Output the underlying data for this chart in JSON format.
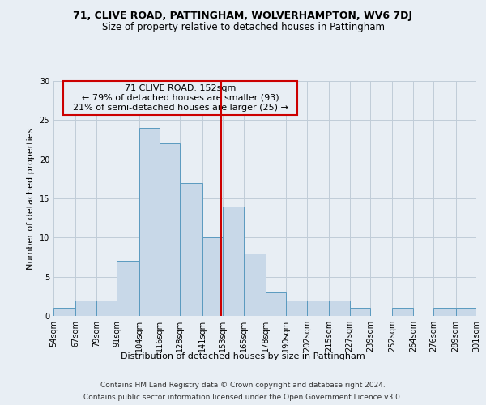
{
  "title1": "71, CLIVE ROAD, PATTINGHAM, WOLVERHAMPTON, WV6 7DJ",
  "title2": "Size of property relative to detached houses in Pattingham",
  "xlabel": "Distribution of detached houses by size in Pattingham",
  "ylabel": "Number of detached properties",
  "footer1": "Contains HM Land Registry data © Crown copyright and database right 2024.",
  "footer2": "Contains public sector information licensed under the Open Government Licence v3.0.",
  "annotation_line1": "71 CLIVE ROAD: 152sqm",
  "annotation_line2": "← 79% of detached houses are smaller (93)",
  "annotation_line3": "21% of semi-detached houses are larger (25) →",
  "bar_color": "#c8d8e8",
  "bar_edge_color": "#5a9abf",
  "vline_color": "#cc0000",
  "vline_x": 152,
  "ylim": [
    0,
    30
  ],
  "yticks": [
    0,
    5,
    10,
    15,
    20,
    25,
    30
  ],
  "bins": [
    54,
    67,
    79,
    91,
    104,
    116,
    128,
    141,
    153,
    165,
    178,
    190,
    202,
    215,
    227,
    239,
    252,
    264,
    276,
    289,
    301
  ],
  "counts": [
    1,
    2,
    2,
    7,
    24,
    22,
    17,
    10,
    14,
    8,
    3,
    2,
    2,
    2,
    1,
    0,
    1,
    0,
    1,
    1
  ],
  "background_color": "#e8eef4",
  "grid_color": "#c0ccd8",
  "title1_fontsize": 9,
  "title2_fontsize": 8.5,
  "xlabel_fontsize": 8,
  "ylabel_fontsize": 8,
  "tick_fontsize": 7,
  "annotation_fontsize": 8,
  "footer_fontsize": 6.5
}
